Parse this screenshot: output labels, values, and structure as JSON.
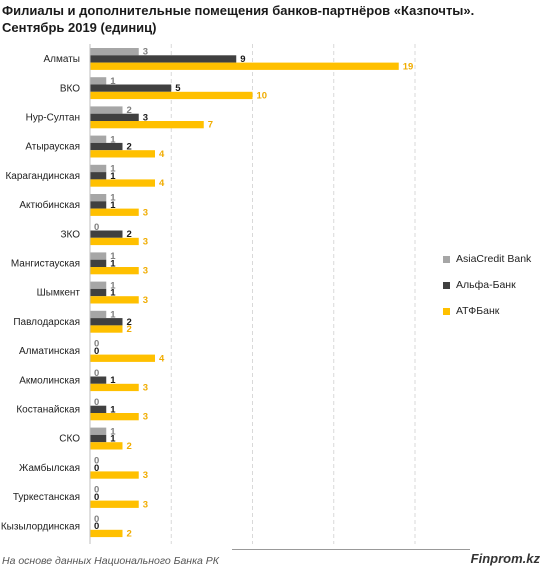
{
  "chart_data": {
    "type": "bar",
    "orientation": "horizontal",
    "title_lines": [
      "Филиалы и дополнительные помещения банков-партнёров «Казпочты».",
      "Сентябрь 2019  (единиц)"
    ],
    "categories": [
      "Алматы",
      "ВКО",
      "Нур-Султан",
      "Атырауская",
      "Карагандинская",
      "Актюбинская",
      "ЗКО",
      "Мангистауская",
      "Шымкент",
      "Павлодарская",
      "Алматинская",
      "Акмолинская",
      "Костанайская",
      "СКО",
      "Жамбылская",
      "Туркестанская",
      "Кызылординская"
    ],
    "series": [
      {
        "name": "AsiaCredit Bank",
        "color": "#a6a6a6",
        "label_color": "#7f7f7f",
        "values": [
          3,
          1,
          2,
          1,
          1,
          1,
          0,
          1,
          1,
          1,
          0,
          0,
          0,
          1,
          0,
          0,
          0
        ]
      },
      {
        "name": "Альфа-Банк",
        "color": "#404040",
        "label_color": "#1a1a1a",
        "values": [
          9,
          5,
          3,
          2,
          1,
          1,
          2,
          1,
          1,
          2,
          0,
          1,
          1,
          1,
          0,
          0,
          0
        ]
      },
      {
        "name": "АТФБанк",
        "color": "#ffc000",
        "label_color": "#f0ac00",
        "values": [
          19,
          10,
          7,
          4,
          4,
          3,
          3,
          3,
          3,
          2,
          4,
          3,
          3,
          2,
          3,
          3,
          2
        ]
      }
    ],
    "xlim": [
      0,
      20
    ],
    "grid": true,
    "legend_position": "right",
    "data_labels": true
  },
  "footer": {
    "source": "На основе данных  Национального  Банка РК",
    "brand": "Finprom.kz"
  }
}
